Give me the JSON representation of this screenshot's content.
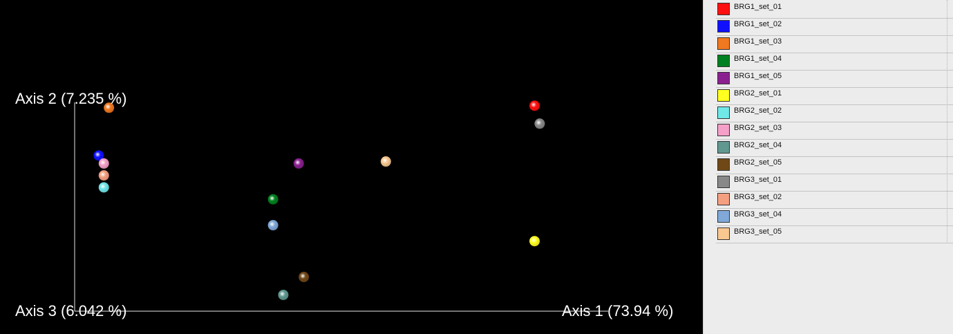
{
  "chart_data": {
    "type": "scatter",
    "axes": {
      "axis1_label": "Axis 1 (73.94 %)",
      "axis2_label": "Axis 2 (7.235 %)",
      "axis3_label": "Axis 3 (6.042 %)"
    },
    "xlim": [
      0,
      1
    ],
    "ylim": [
      0,
      1
    ],
    "legend_placement": "right",
    "series": [
      {
        "name": "BRG1_set_01",
        "color": "#ff1010",
        "x": 0.87,
        "y": 0.99
      },
      {
        "name": "BRG1_set_02",
        "color": "#1010ff",
        "x": 0.02,
        "y": 0.74
      },
      {
        "name": "BRG1_set_03",
        "color": "#f07820",
        "x": 0.04,
        "y": 0.98
      },
      {
        "name": "BRG1_set_04",
        "color": "#008020",
        "x": 0.36,
        "y": 0.52
      },
      {
        "name": "BRG1_set_05",
        "color": "#8a2090",
        "x": 0.41,
        "y": 0.7
      },
      {
        "name": "BRG2_set_01",
        "color": "#ffff20",
        "x": 0.87,
        "y": 0.31
      },
      {
        "name": "BRG2_set_02",
        "color": "#70e8e8",
        "x": 0.03,
        "y": 0.58
      },
      {
        "name": "BRG2_set_03",
        "color": "#f4a0c8",
        "x": 0.03,
        "y": 0.7
      },
      {
        "name": "BRG2_set_04",
        "color": "#609890",
        "x": 0.38,
        "y": 0.04
      },
      {
        "name": "BRG2_set_05",
        "color": "#704818",
        "x": 0.42,
        "y": 0.13
      },
      {
        "name": "BRG3_set_01",
        "color": "#888888",
        "x": 0.88,
        "y": 0.9
      },
      {
        "name": "BRG3_set_02",
        "color": "#f4a080",
        "x": 0.03,
        "y": 0.64
      },
      {
        "name": "BRG3_set_04",
        "color": "#80a8d8",
        "x": 0.36,
        "y": 0.39
      },
      {
        "name": "BRG3_set_05",
        "color": "#f8c890",
        "x": 0.58,
        "y": 0.71
      }
    ]
  }
}
